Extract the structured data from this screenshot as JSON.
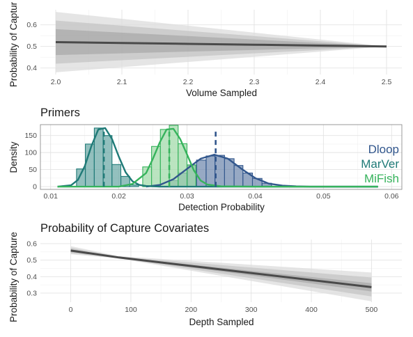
{
  "chart_data": [
    {
      "type": "area",
      "title": "",
      "xlabel": "Volume Sampled",
      "ylabel": "Probability of Captur",
      "xlim": [
        2.0,
        2.5
      ],
      "ylim": [
        0.37,
        0.67
      ],
      "x_ticks": [
        "2.0",
        "2.1",
        "2.2",
        "2.3",
        "2.4",
        "2.5"
      ],
      "y_ticks": [
        "0.4",
        "0.5",
        "0.6"
      ],
      "grid": true,
      "x": [
        2.0,
        2.1,
        2.2,
        2.3,
        2.4,
        2.5
      ],
      "mean": [
        0.52,
        0.516,
        0.512,
        0.508,
        0.504,
        0.5
      ],
      "ribbons": [
        {
          "lower": [
            0.38,
            0.404,
            0.428,
            0.452,
            0.476,
            0.5
          ],
          "upper": [
            0.66,
            0.628,
            0.596,
            0.564,
            0.532,
            0.5
          ],
          "fill": "#dcdcdc"
        },
        {
          "lower": [
            0.42,
            0.436,
            0.452,
            0.468,
            0.484,
            0.5
          ],
          "upper": [
            0.62,
            0.596,
            0.572,
            0.548,
            0.524,
            0.5
          ],
          "fill": "#c4c4c4"
        },
        {
          "lower": [
            0.46,
            0.468,
            0.476,
            0.484,
            0.492,
            0.5
          ],
          "upper": [
            0.58,
            0.564,
            0.548,
            0.532,
            0.516,
            0.5
          ],
          "fill": "#a9a9a9"
        }
      ],
      "line_color": "#4a4a4a"
    },
    {
      "type": "bar",
      "title": "Primers",
      "xlabel": "Detection Probability",
      "ylabel": "Density",
      "xlim": [
        0.0085,
        0.0615
      ],
      "ylim": [
        -8,
        182
      ],
      "x_ticks": [
        "0.01",
        "0.02",
        "0.03",
        "0.04",
        "0.05",
        "0.06"
      ],
      "y_ticks": [
        "0",
        "50",
        "100",
        "150"
      ],
      "grid": true,
      "legend_position": "right",
      "series": [
        {
          "name": "Dloop",
          "color": "#31568c",
          "fill": "#6f88ad",
          "mean": 0.0342,
          "bins": [
            0.0274,
            0.0287,
            0.0301,
            0.0314,
            0.0328,
            0.0341,
            0.0355,
            0.0369,
            0.0382,
            0.0396,
            0.041,
            0.0424
          ],
          "heights": [
            18,
            40,
            62,
            78,
            90,
            92,
            82,
            62,
            40,
            24,
            10
          ],
          "density_x": [
            0.024,
            0.026,
            0.028,
            0.03,
            0.032,
            0.034,
            0.036,
            0.038,
            0.04,
            0.042,
            0.044,
            0.046,
            0.048,
            0.05,
            0.058
          ],
          "density_y": [
            0,
            5,
            22,
            52,
            82,
            94,
            82,
            52,
            25,
            9,
            3,
            1,
            0,
            0,
            0
          ]
        },
        {
          "name": "MarVer",
          "color": "#1f7a77",
          "fill": "#6aa8a5",
          "mean": 0.0178,
          "bins": [
            0.0138,
            0.0151,
            0.0164,
            0.0177,
            0.019,
            0.0203,
            0.0216,
            0.0229
          ],
          "heights": [
            52,
            125,
            172,
            150,
            65,
            30,
            5
          ],
          "density_x": [
            0.011,
            0.013,
            0.014,
            0.015,
            0.016,
            0.017,
            0.018,
            0.019,
            0.02,
            0.021,
            0.022,
            0.023,
            0.024,
            0.026,
            0.03,
            0.04,
            0.058
          ],
          "density_y": [
            0,
            4,
            20,
            60,
            120,
            168,
            172,
            140,
            88,
            42,
            16,
            5,
            2,
            0,
            0,
            0,
            0
          ]
        },
        {
          "name": "MiFish",
          "color": "#36b35c",
          "fill": "#9fd9a7",
          "mean": 0.0274,
          "bins": [
            0.0235,
            0.0248,
            0.0261,
            0.0274,
            0.0287,
            0.03,
            0.0313
          ],
          "heights": [
            58,
            118,
            168,
            180,
            126,
            64,
            12
          ],
          "density_x": [
            0.011,
            0.02,
            0.022,
            0.024,
            0.025,
            0.026,
            0.027,
            0.028,
            0.029,
            0.03,
            0.031,
            0.032,
            0.033,
            0.035,
            0.04,
            0.058
          ],
          "density_y": [
            0,
            0,
            8,
            40,
            82,
            130,
            168,
            170,
            140,
            95,
            48,
            18,
            6,
            1,
            0,
            0
          ]
        }
      ]
    },
    {
      "type": "area",
      "title": "Probability of Capture Covariates",
      "xlabel": "Depth Sampled",
      "ylabel": "Probability of Capture",
      "xlim": [
        -25,
        525
      ],
      "ylim": [
        0.245,
        0.625
      ],
      "x_ticks": [
        "0",
        "100",
        "200",
        "300",
        "400",
        "500"
      ],
      "y_ticks": [
        "0.3",
        "0.4",
        "0.5",
        "0.6"
      ],
      "grid": true,
      "x": [
        0,
        80,
        500
      ],
      "mean": [
        0.558,
        0.516,
        0.336
      ],
      "ribbons": [
        {
          "lower": [
            0.535,
            0.51,
            0.25
          ],
          "upper": [
            0.585,
            0.524,
            0.425
          ],
          "fill": "#dcdcdc"
        },
        {
          "lower": [
            0.542,
            0.512,
            0.28
          ],
          "upper": [
            0.575,
            0.521,
            0.395
          ],
          "fill": "#c4c4c4"
        },
        {
          "lower": [
            0.55,
            0.514,
            0.31
          ],
          "upper": [
            0.566,
            0.518,
            0.36
          ],
          "fill": "#a9a9a9"
        }
      ],
      "line_color": "#4a4a4a"
    }
  ]
}
